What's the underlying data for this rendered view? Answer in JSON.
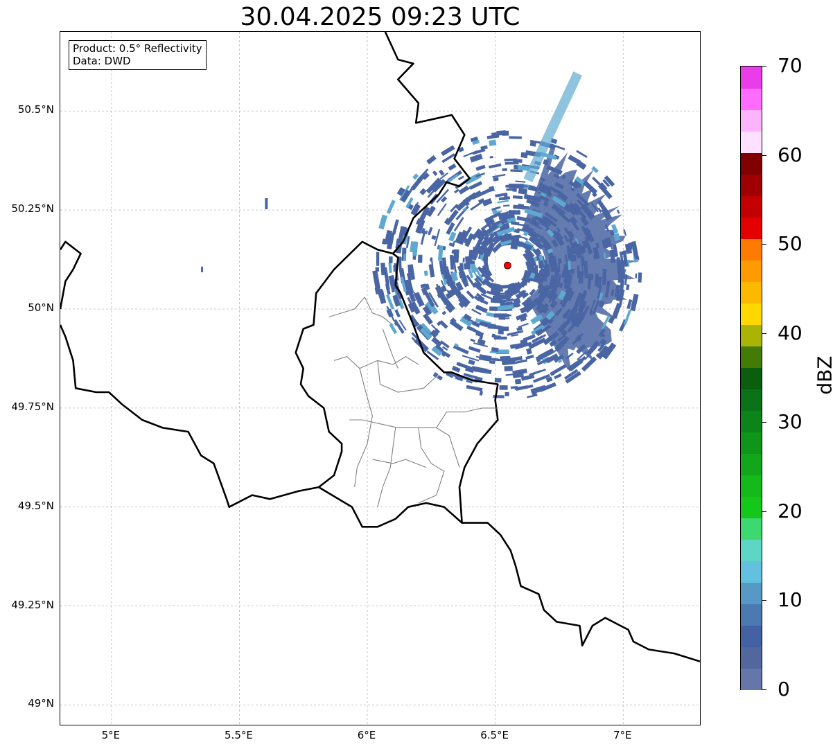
{
  "title": "30.04.2025 09:23 UTC",
  "info_box": {
    "product": "Product: 0.5° Reflectivity",
    "data_source": "Data: DWD"
  },
  "map": {
    "lon_range": [
      4.8,
      7.3
    ],
    "lat_range": [
      48.95,
      50.7
    ],
    "lat_ticks": [
      {
        "value": 50.5,
        "label": "50.5°N"
      },
      {
        "value": 50.25,
        "label": "50.25°N"
      },
      {
        "value": 50.0,
        "label": "50°N"
      },
      {
        "value": 49.75,
        "label": "49.75°N"
      },
      {
        "value": 49.5,
        "label": "49.5°N"
      },
      {
        "value": 49.25,
        "label": "49.25°N"
      },
      {
        "value": 49.0,
        "label": "49°N"
      }
    ],
    "lon_ticks": [
      {
        "value": 5.0,
        "label": "5°E"
      },
      {
        "value": 5.5,
        "label": "5.5°E"
      },
      {
        "value": 6.0,
        "label": "6°E"
      },
      {
        "value": 6.5,
        "label": "6.5°E"
      },
      {
        "value": 7.0,
        "label": "7°E"
      }
    ],
    "grid": true,
    "radar_site": {
      "lon": 6.548,
      "lat": 50.11,
      "color": "#ff0000"
    },
    "radar_range_km": 100,
    "precip_color": "#4a65a3",
    "precip_color_light": "#5fa9d0"
  },
  "colorbar": {
    "label": "dBZ",
    "min": 0,
    "max": 70,
    "tick_values": [
      0,
      10,
      20,
      30,
      40,
      50,
      60,
      70
    ],
    "tick_labels": [
      "0",
      "10",
      "20",
      "30",
      "40",
      "50",
      "60",
      "70"
    ],
    "colors": [
      "#6577a8",
      "#53679f",
      "#4361a3",
      "#4b7ab1",
      "#5799c5",
      "#63c1df",
      "#5ed6c5",
      "#3dd86f",
      "#13c819",
      "#14b91a",
      "#12a71a",
      "#0f951a",
      "#0d8419",
      "#0a7318",
      "#0a5e0e",
      "#447a06",
      "#aab404",
      "#ffd800",
      "#ffb800",
      "#ff9a00",
      "#ff7a00",
      "#e40000",
      "#c20000",
      "#a00000",
      "#800000",
      "#ffe0ff",
      "#ffb4ff",
      "#ff6cff",
      "#e93de9"
    ]
  }
}
